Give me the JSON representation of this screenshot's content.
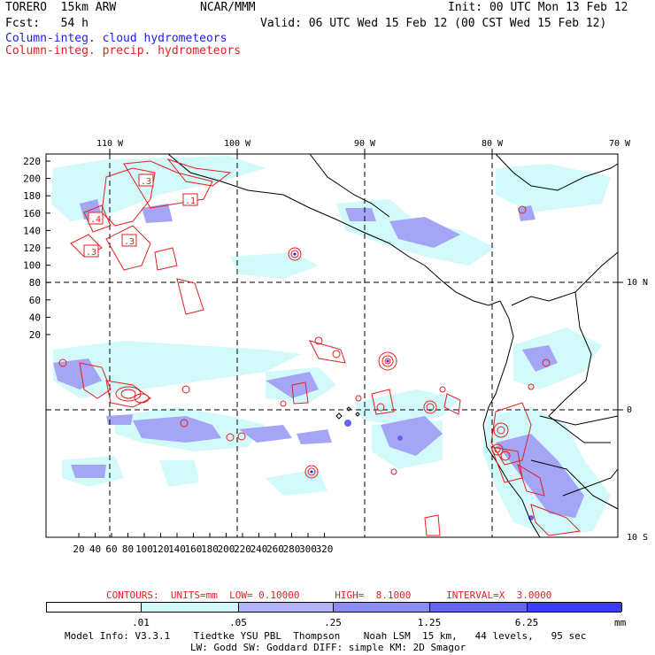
{
  "header": {
    "model": "TORERO  15km ARW",
    "center": "NCAR/MMM",
    "init": "Init: 00 UTC Mon 13 Feb 12",
    "fcst": "Fcst:   54 h",
    "valid": "Valid: 06 UTC Wed 15 Feb 12 (00 CST Wed 15 Feb 12)",
    "field1": "Column-integ. cloud hydrometeors",
    "field2": "Column-integ. precip. hydrometeors"
  },
  "map": {
    "top_labels": [
      "110 W",
      "100 W",
      "90 W",
      "80 W",
      "70 W"
    ],
    "right_labels": [
      "10 N",
      "0",
      "10 S"
    ],
    "y_ticks": [
      "220",
      "200",
      "180",
      "160",
      "140",
      "120",
      "100",
      "80",
      "60",
      "40",
      "20"
    ],
    "x_ticks": [
      "20",
      "40",
      "60",
      "80",
      "100",
      "120",
      "140",
      "160",
      "180",
      "200",
      "220",
      "240",
      "260",
      "280",
      "300",
      "320"
    ],
    "contour_labels": [
      ".3",
      ".1",
      ".4",
      ".3",
      ".3"
    ]
  },
  "legend": {
    "contours": "CONTOURS:  UNITS=mm  LOW= 0.10000      HIGH=  8.1000      INTERVAL=X  3.0000",
    "colorbar_labels": [
      ".01",
      ".05",
      ".25",
      "1.25",
      "6.25"
    ],
    "units": "mm",
    "colors": [
      "#ffffff",
      "#d2fafa",
      "#b4b4fa",
      "#8c8cf5",
      "#6464f0",
      "#3c3cf0",
      "#1e1ee6"
    ]
  },
  "footer": {
    "line1": "Model Info: V3.3.1    Tiedtke YSU PBL  Thompson    Noah LSM  15 km,   44 levels,   95 sec",
    "line2": "LW: Godd SW: Goddard DIFF: simple KM: 2D Smagor"
  }
}
